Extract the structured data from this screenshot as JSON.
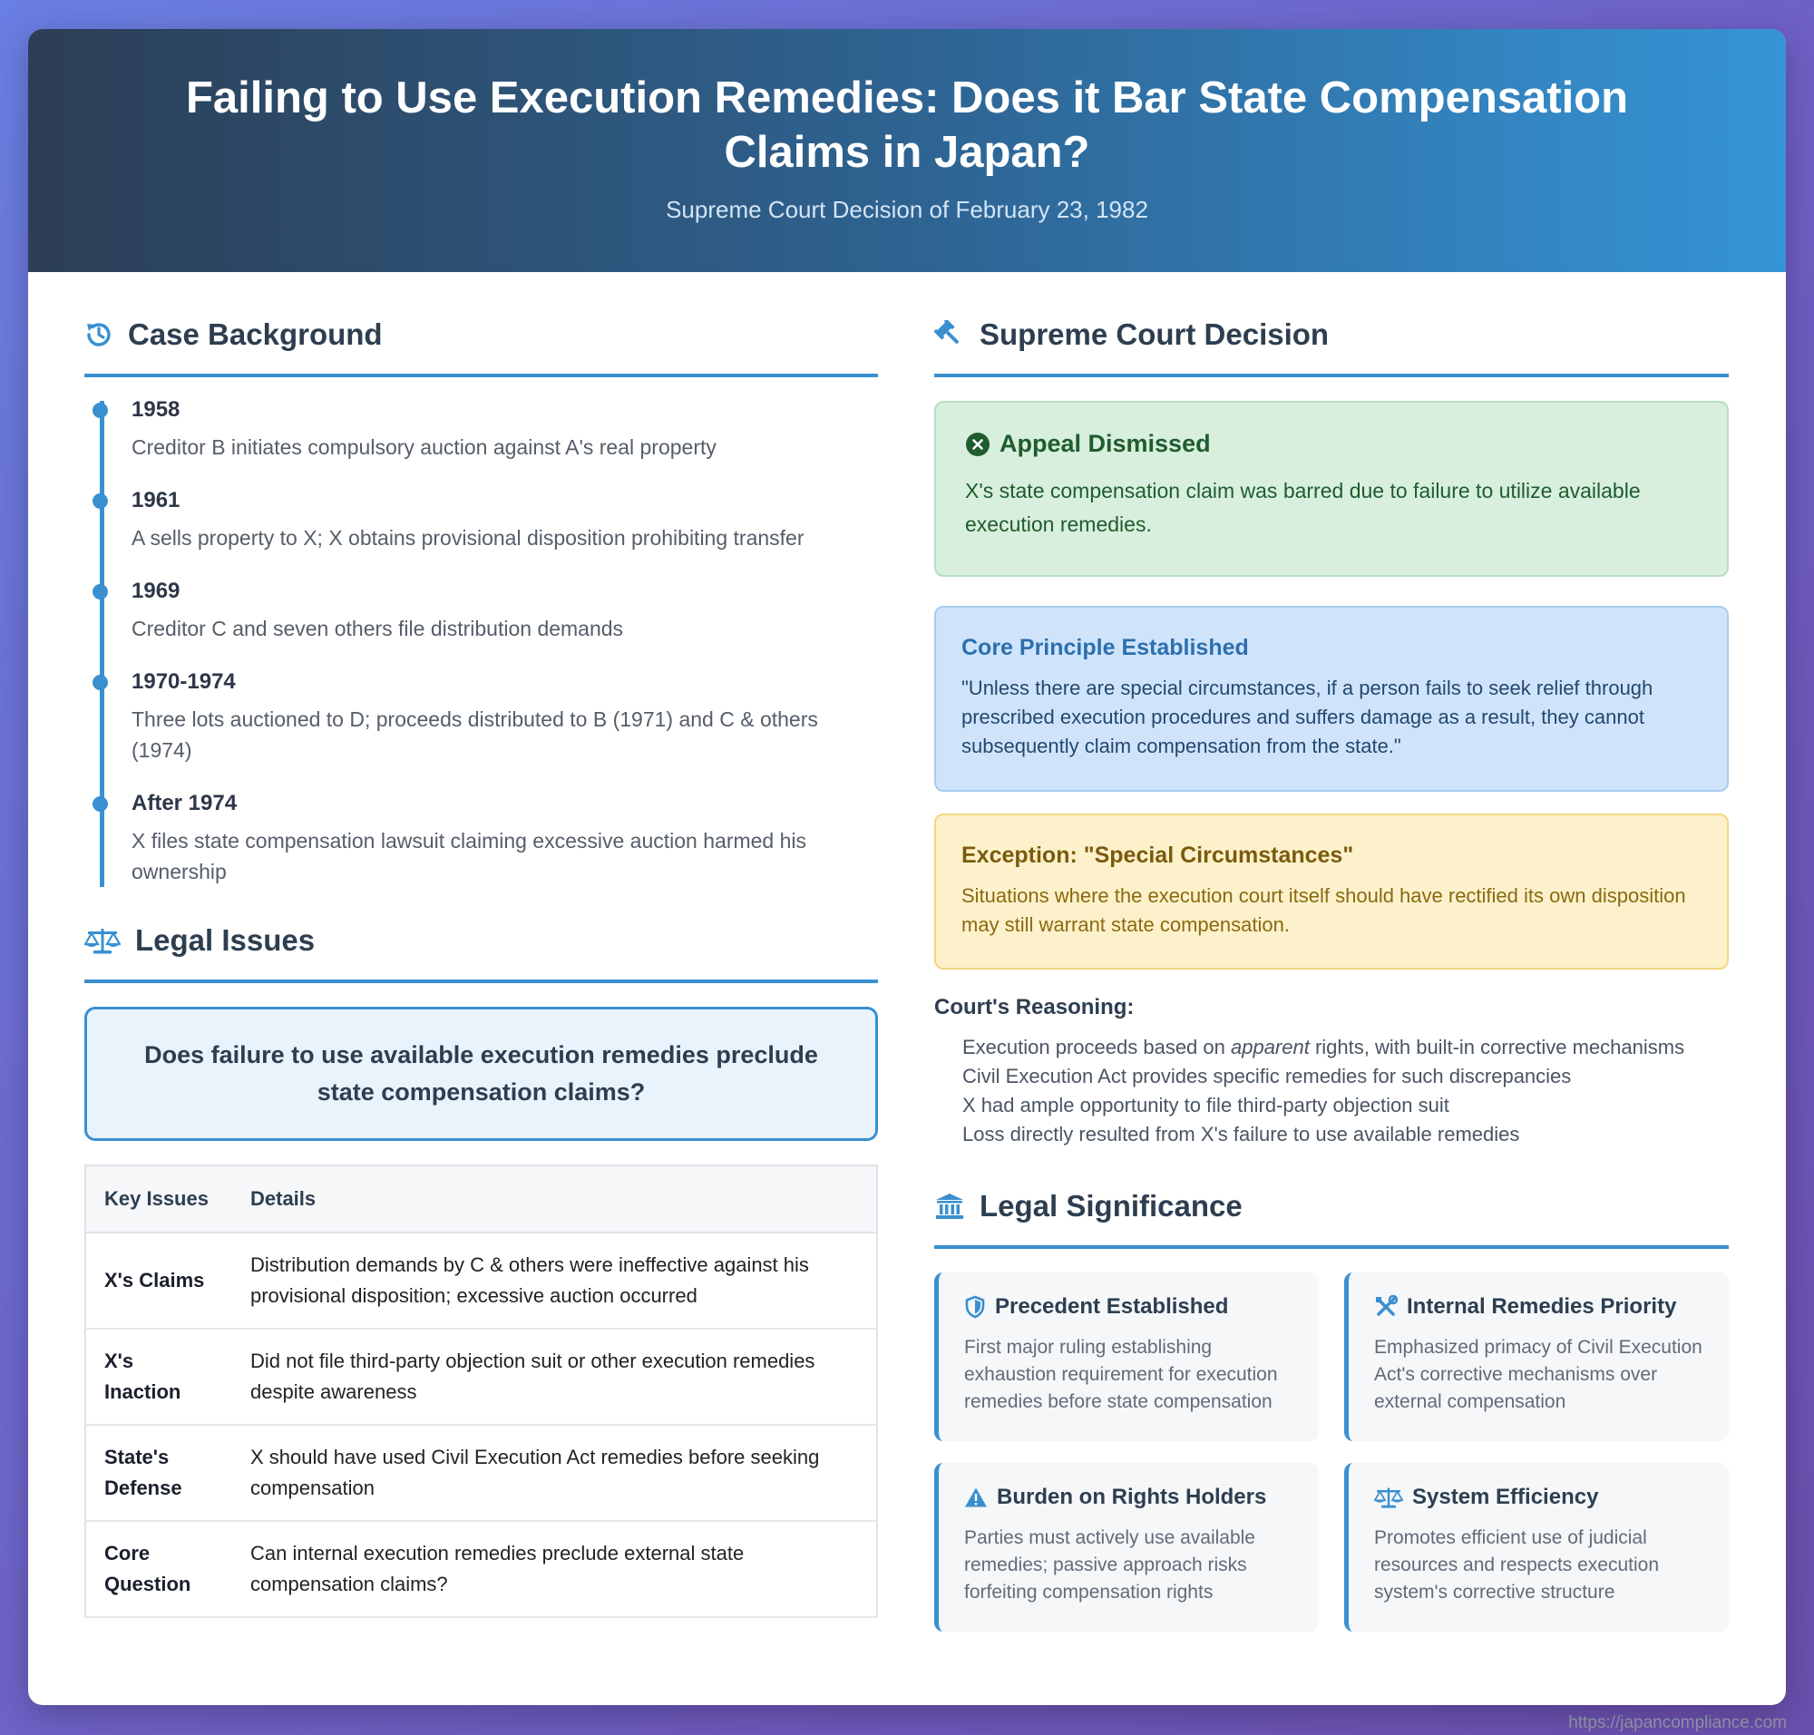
{
  "header": {
    "title": "Failing to Use Execution Remedies: Does it Bar State Compensation Claims in Japan?",
    "subtitle": "Supreme Court Decision of February 23, 1982"
  },
  "background": {
    "title": "Case Background",
    "icon": "history-icon",
    "events": [
      {
        "year": "1958",
        "text": "Creditor B initiates compulsory auction against A's real property"
      },
      {
        "year": "1961",
        "text": "A sells property to X; X obtains provisional disposition prohibiting transfer"
      },
      {
        "year": "1969",
        "text": "Creditor C and seven others file distribution demands"
      },
      {
        "year": "1970-1974",
        "text": "Three lots auctioned to D; proceeds distributed to B (1971) and C & others (1974)"
      },
      {
        "year": "After 1974",
        "text": "X files state compensation lawsuit claiming excessive auction harmed his ownership"
      }
    ]
  },
  "issues": {
    "title": "Legal Issues",
    "icon": "scales-icon",
    "question": "Does failure to use available execution remedies preclude state compensation claims?",
    "table": {
      "headers": [
        "Key Issues",
        "Details"
      ],
      "rows": [
        {
          "key": "X's Claims",
          "detail": "Distribution demands by C & others were ineffective against his provisional disposition; excessive auction occurred"
        },
        {
          "key": "X's Inaction",
          "detail": "Did not file third-party objection suit or other execution remedies despite awareness"
        },
        {
          "key": "State's Defense",
          "detail": "X should have used Civil Execution Act remedies before seeking compensation"
        },
        {
          "key": "Core Question",
          "detail": "Can internal execution remedies preclude external state compensation claims?"
        }
      ]
    }
  },
  "decision": {
    "title": "Supreme Court Decision",
    "icon": "gavel-icon",
    "dismissed": {
      "title": "Appeal Dismissed",
      "text": "X's state compensation claim was barred due to failure to utilize available execution remedies."
    },
    "principle": {
      "title": "Core Principle Established",
      "text": "\"Unless there are special circumstances, if a person fails to seek relief through prescribed execution procedures and suffers damage as a result, they cannot subsequently claim compensation from the state.\""
    },
    "exception": {
      "title": "Exception: \"Special Circumstances\"",
      "text": "Situations where the execution court itself should have rectified its own disposition may still warrant state compensation."
    },
    "reasoning_title": "Court's Reasoning:",
    "reasoning": [
      {
        "before": "Execution proceeds based on ",
        "em": "apparent",
        "after": " rights, with built-in corrective mechanisms"
      },
      {
        "before": "Civil Execution Act provides specific remedies for such discrepancies",
        "em": "",
        "after": ""
      },
      {
        "before": "X had ample opportunity to file third-party objection suit",
        "em": "",
        "after": ""
      },
      {
        "before": "Loss directly resulted from X's failure to use available remedies",
        "em": "",
        "after": ""
      }
    ]
  },
  "significance": {
    "title": "Legal Significance",
    "icon": "institution-icon",
    "cards": [
      {
        "title": "Precedent Established",
        "icon": "shield-icon",
        "text": "First major ruling establishing exhaustion requirement for execution remedies before state compensation"
      },
      {
        "title": "Internal Remedies Priority",
        "icon": "tools-icon",
        "text": "Emphasized primacy of Civil Execution Act's corrective mechanisms over external compensation"
      },
      {
        "title": "Burden on Rights Holders",
        "icon": "warning-icon",
        "text": "Parties must actively use available remedies; passive approach risks forfeiting compensation rights"
      },
      {
        "title": "System Efficiency",
        "icon": "scales-icon",
        "text": "Promotes efficient use of judicial resources and respects execution system's corrective structure"
      }
    ]
  },
  "footer": {
    "url": "https://japancompliance.com"
  },
  "colors": {
    "accent": "#3a8fd0",
    "success": "#1f5c2e",
    "info": "#2d6fae",
    "warning": "#7a5b0c"
  }
}
